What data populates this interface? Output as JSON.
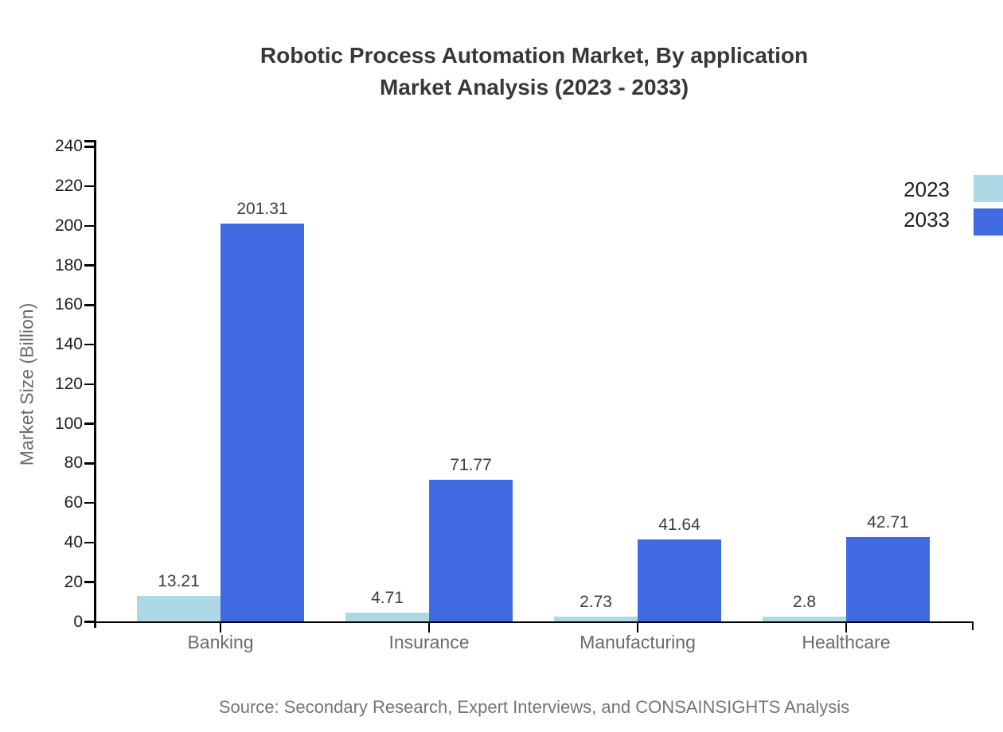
{
  "title": {
    "line1": "Robotic Process Automation Market, By application",
    "line2": "Market Analysis (2023 - 2033)"
  },
  "y_axis": {
    "label": "Market Size (Billion)"
  },
  "legend": [
    {
      "label": "2023",
      "color": "#add8e6"
    },
    {
      "label": "2033",
      "color": "#4169e1"
    }
  ],
  "source": {
    "text": "Source: Secondary Research, Expert Interviews, and CONSAINSIGHTS Analysis"
  },
  "colors": {
    "axis": "#000000",
    "title_text": "#383838",
    "tick_text": "#1f1f1f",
    "category_text": "#6b6b6b",
    "value_text": "#3d3d3d",
    "source_text": "#757575",
    "series_2023": "#add8e6",
    "series_2033": "#4169e1"
  },
  "chart_data": {
    "type": "bar",
    "title": "Robotic Process Automation Market, By application Market Analysis (2023 - 2033)",
    "xlabel": "",
    "ylabel": "Market Size (Billion)",
    "categories": [
      "Banking",
      "Insurance",
      "Manufacturing",
      "Healthcare"
    ],
    "series": [
      {
        "name": "2023",
        "color": "#add8e6",
        "values": [
          13.21,
          4.71,
          2.73,
          2.8
        ],
        "labels": [
          "13.21",
          "4.71",
          "2.73",
          "2.8"
        ]
      },
      {
        "name": "2033",
        "color": "#4169e1",
        "values": [
          201.31,
          71.77,
          41.64,
          42.71
        ],
        "labels": [
          "201.31",
          "71.77",
          "41.64",
          "42.71"
        ]
      }
    ],
    "ylim": [
      0,
      240
    ],
    "yticks": [
      0,
      20,
      40,
      60,
      80,
      100,
      120,
      140,
      160,
      180,
      200,
      220,
      240
    ],
    "grid": false,
    "legend_position": "top-right"
  }
}
